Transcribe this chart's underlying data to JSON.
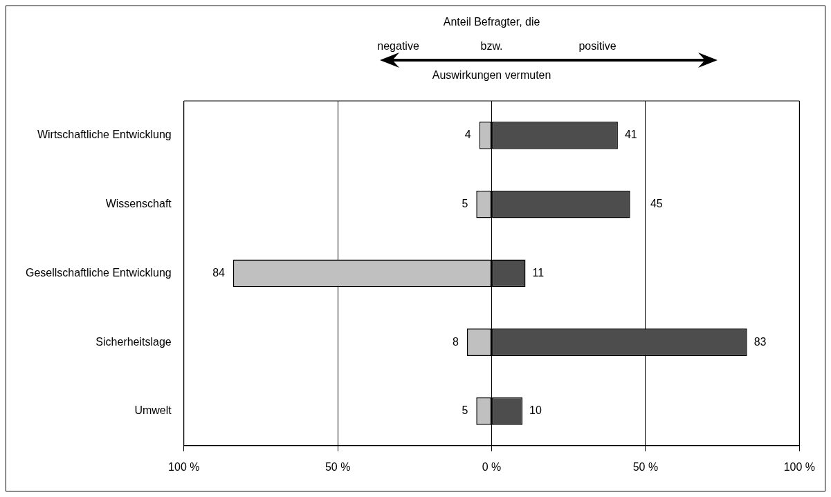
{
  "chart_data": {
    "type": "bar",
    "orientation": "horizontal",
    "title": "Anteil Befragter, die",
    "annotations": [
      "negative",
      "bzw.",
      "positive",
      "Auswirkungen vermuten"
    ],
    "categories": [
      "Wirtschaftliche Entwicklung",
      "Wissenschaft",
      "Gesellschaftliche Entwicklung",
      "Sicherheitslage",
      "Umwelt"
    ],
    "series": [
      {
        "color": "#c0c0c0",
        "base": [
          -4,
          -5,
          -84,
          -8,
          -5
        ],
        "values": [
          4,
          5,
          84,
          8,
          5
        ]
      },
      {
        "color": "#4d4d4d",
        "values": [
          41,
          45,
          11,
          83,
          10
        ]
      }
    ],
    "data_labels": true,
    "xlim": [
      -100,
      100
    ],
    "xticks": [
      {
        "value": -100,
        "label": "100 %"
      },
      {
        "value": -50,
        "label": "50 %"
      },
      {
        "value": 0,
        "label": "0 %"
      },
      {
        "value": 50,
        "label": "50 %"
      },
      {
        "value": 100,
        "label": "100 %"
      }
    ],
    "grid": "x",
    "legend": false
  }
}
